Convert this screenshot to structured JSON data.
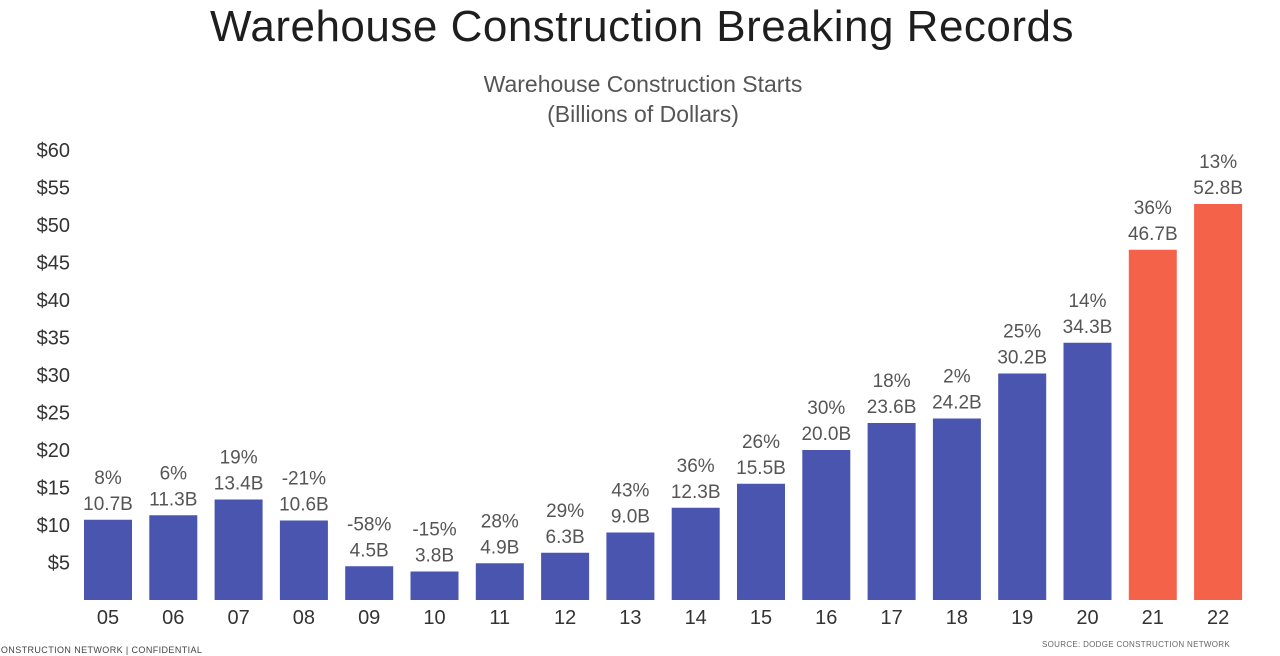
{
  "slide": {
    "title": "Warehouse Construction Breaking Records",
    "footer_left": "CONSTRUCTION NETWORK  |  CONFIDENTIAL",
    "footer_right": "SOURCE: DODGE CONSTRUCTION NETWORK"
  },
  "chart_data": {
    "type": "bar",
    "title": "Warehouse Construction Starts",
    "subtitle": "(Billions of Dollars)",
    "xlabel": "",
    "ylabel": "",
    "categories": [
      "05",
      "06",
      "07",
      "08",
      "09",
      "10",
      "11",
      "12",
      "13",
      "14",
      "15",
      "16",
      "17",
      "18",
      "19",
      "20",
      "21",
      "22"
    ],
    "values": [
      10.7,
      11.3,
      13.4,
      10.6,
      4.5,
      3.8,
      4.9,
      6.3,
      9.0,
      12.3,
      15.5,
      20.0,
      23.6,
      24.2,
      30.2,
      34.3,
      46.7,
      52.8
    ],
    "value_labels": [
      "10.7B",
      "11.3B",
      "13.4B",
      "10.6B",
      "4.5B",
      "3.8B",
      "4.9B",
      "6.3B",
      "9.0B",
      "12.3B",
      "15.5B",
      "20.0B",
      "23.6B",
      "24.2B",
      "30.2B",
      "34.3B",
      "46.7B",
      "52.8B"
    ],
    "pct_labels": [
      "8%",
      "6%",
      "19%",
      "-21%",
      "-58%",
      "-15%",
      "28%",
      "29%",
      "43%",
      "36%",
      "26%",
      "30%",
      "18%",
      "2%",
      "25%",
      "14%",
      "36%",
      "13%"
    ],
    "highlight": [
      false,
      false,
      false,
      false,
      false,
      false,
      false,
      false,
      false,
      false,
      false,
      false,
      false,
      false,
      false,
      false,
      true,
      true
    ],
    "ylim": [
      0,
      60
    ],
    "yticks": [
      "$5",
      "$10",
      "$15",
      "$20",
      "$25",
      "$30",
      "$35",
      "$40",
      "$45",
      "$50",
      "$55",
      "$60"
    ],
    "ytick_values": [
      5,
      10,
      15,
      20,
      25,
      30,
      35,
      40,
      45,
      50,
      55,
      60
    ],
    "grid": false,
    "colors": {
      "bar": "#4a55b0",
      "highlight": "#f5624a",
      "text": "#555555",
      "axis_text": "#333333"
    }
  }
}
